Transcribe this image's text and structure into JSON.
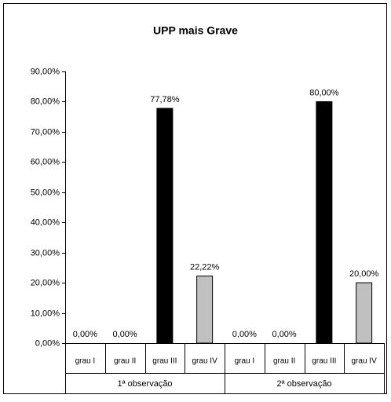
{
  "chart_data": {
    "type": "bar",
    "title": "UPP mais Grave",
    "categories": [
      "grau I",
      "grau II",
      "grau III",
      "grau IV",
      "grau I",
      "grau II",
      "grau III",
      "grau IV"
    ],
    "groups": [
      "1ª observação",
      "2ª observação"
    ],
    "values": [
      0,
      0,
      77.78,
      22.22,
      0,
      0,
      80,
      20
    ],
    "value_labels": [
      "0,00%",
      "0,00%",
      "77,78%",
      "22,22%",
      "0,00%",
      "0,00%",
      "80,00%",
      "20,00%"
    ],
    "colors": [
      "#c0c0c0",
      "#c0c0c0",
      "#000000",
      "#c0c0c0",
      "#c0c0c0",
      "#c0c0c0",
      "#000000",
      "#c0c0c0"
    ],
    "ylim": [
      0,
      90
    ],
    "yticks": [
      {
        "value": 0,
        "label": "0,00%"
      },
      {
        "value": 10,
        "label": "10,00%"
      },
      {
        "value": 20,
        "label": "20,00%"
      },
      {
        "value": 30,
        "label": "30,00%"
      },
      {
        "value": 40,
        "label": "40,00%"
      },
      {
        "value": 50,
        "label": "50,00%"
      },
      {
        "value": 60,
        "label": "60,00%"
      },
      {
        "value": 70,
        "label": "70,00%"
      },
      {
        "value": 80,
        "label": "80,00%"
      },
      {
        "value": 90,
        "label": "90,00%"
      }
    ],
    "grid": false
  }
}
